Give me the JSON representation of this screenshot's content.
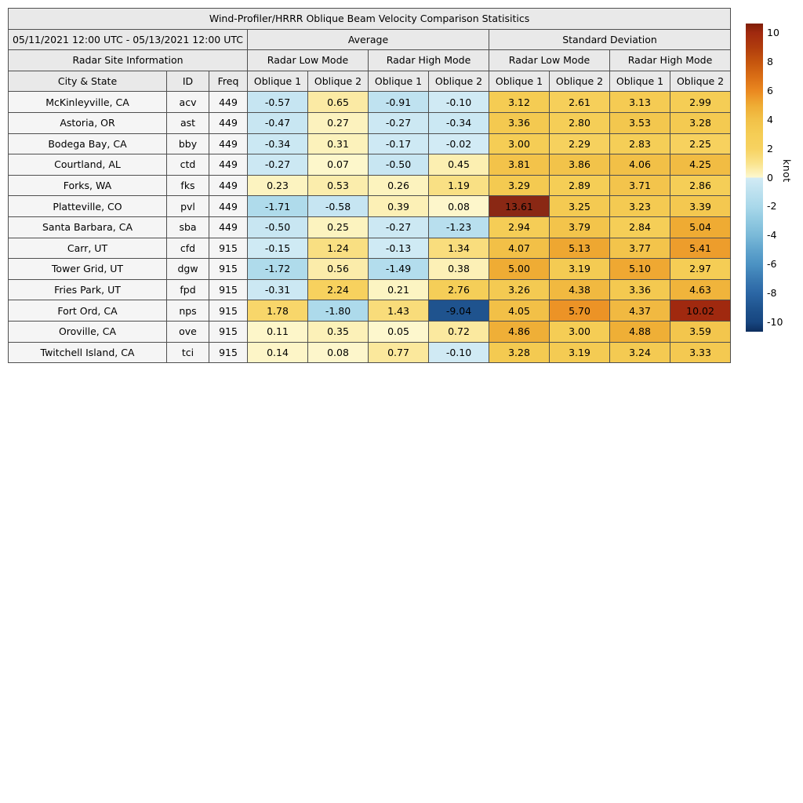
{
  "chart_data": {
    "type": "table",
    "title": "Wind-Profiler/HRRR Oblique Beam Velocity Comparison Statisitics",
    "header": {
      "date_range": "05/11/2021 12:00 UTC - 05/13/2021 12:00 UTC",
      "average": "Average",
      "standard_deviation": "Standard Deviation",
      "site_info": "Radar Site Information",
      "low_mode": "Radar Low Mode",
      "high_mode": "Radar High Mode",
      "col_city": "City & State",
      "col_id": "ID",
      "col_freq": "Freq",
      "oblique1": "Oblique 1",
      "oblique2": "Oblique 2"
    },
    "value_columns": [
      "Average / Radar Low Mode / Oblique 1",
      "Average / Radar Low Mode / Oblique 2",
      "Average / Radar High Mode / Oblique 1",
      "Average / Radar High Mode / Oblique 2",
      "Standard Deviation / Radar Low Mode / Oblique 1",
      "Standard Deviation / Radar Low Mode / Oblique 2",
      "Standard Deviation / Radar High Mode / Oblique 1",
      "Standard Deviation / Radar High Mode / Oblique 2"
    ],
    "rows": [
      {
        "city": "McKinleyville, CA",
        "id": "acv",
        "freq": "449",
        "values": [
          "-0.57",
          "0.65",
          "-0.91",
          "-0.10",
          "3.12",
          "2.61",
          "3.13",
          "2.99"
        ]
      },
      {
        "city": "Astoria, OR",
        "id": "ast",
        "freq": "449",
        "values": [
          "-0.47",
          "0.27",
          "-0.27",
          "-0.34",
          "3.36",
          "2.80",
          "3.53",
          "3.28"
        ]
      },
      {
        "city": "Bodega Bay, CA",
        "id": "bby",
        "freq": "449",
        "values": [
          "-0.34",
          "0.31",
          "-0.17",
          "-0.02",
          "3.00",
          "2.29",
          "2.83",
          "2.25"
        ]
      },
      {
        "city": "Courtland, AL",
        "id": "ctd",
        "freq": "449",
        "values": [
          "-0.27",
          "0.07",
          "-0.50",
          "0.45",
          "3.81",
          "3.86",
          "4.06",
          "4.25"
        ]
      },
      {
        "city": "Forks, WA",
        "id": "fks",
        "freq": "449",
        "values": [
          "0.23",
          "0.53",
          "0.26",
          "1.19",
          "3.29",
          "2.89",
          "3.71",
          "2.86"
        ]
      },
      {
        "city": "Platteville, CO",
        "id": "pvl",
        "freq": "449",
        "values": [
          "-1.71",
          "-0.58",
          "0.39",
          "0.08",
          "13.61",
          "3.25",
          "3.23",
          "3.39"
        ]
      },
      {
        "city": "Santa Barbara, CA",
        "id": "sba",
        "freq": "449",
        "values": [
          "-0.50",
          "0.25",
          "-0.27",
          "-1.23",
          "2.94",
          "3.79",
          "2.84",
          "5.04"
        ]
      },
      {
        "city": "Carr, UT",
        "id": "cfd",
        "freq": "915",
        "values": [
          "-0.15",
          "1.24",
          "-0.13",
          "1.34",
          "4.07",
          "5.13",
          "3.77",
          "5.41"
        ]
      },
      {
        "city": "Tower Grid, UT",
        "id": "dgw",
        "freq": "915",
        "values": [
          "-1.72",
          "0.56",
          "-1.49",
          "0.38",
          "5.00",
          "3.19",
          "5.10",
          "2.97"
        ]
      },
      {
        "city": "Fries Park, UT",
        "id": "fpd",
        "freq": "915",
        "values": [
          "-0.31",
          "2.24",
          "0.21",
          "2.76",
          "3.26",
          "4.38",
          "3.36",
          "4.63"
        ]
      },
      {
        "city": "Fort Ord, CA",
        "id": "nps",
        "freq": "915",
        "values": [
          "1.78",
          "-1.80",
          "1.43",
          "-9.04",
          "4.05",
          "5.70",
          "4.37",
          "10.02"
        ]
      },
      {
        "city": "Oroville, CA",
        "id": "ove",
        "freq": "915",
        "values": [
          "0.11",
          "0.35",
          "0.05",
          "0.72",
          "4.86",
          "3.00",
          "4.88",
          "3.59"
        ]
      },
      {
        "city": "Twitchell Island, CA",
        "id": "tci",
        "freq": "915",
        "values": [
          "0.14",
          "0.08",
          "0.77",
          "-0.10",
          "3.28",
          "3.19",
          "3.24",
          "3.33"
        ]
      }
    ],
    "colorbar": {
      "label": "knot",
      "ticks": [
        10,
        8,
        6,
        4,
        2,
        0,
        -2,
        -4,
        -6,
        -8,
        -10
      ],
      "vmin": -10.65,
      "vmax": 10.65,
      "colormap_stops": [
        [
          -10.65,
          "#0d2e5e"
        ],
        [
          -10.0,
          "#174680"
        ],
        [
          -9.0,
          "#1f548f"
        ],
        [
          -8.0,
          "#2b66a5"
        ],
        [
          -7.0,
          "#3a7ab2"
        ],
        [
          -6.0,
          "#4b92c3"
        ],
        [
          -5.0,
          "#60a4cd"
        ],
        [
          -4.0,
          "#7ab9d8"
        ],
        [
          -3.0,
          "#90c9e1"
        ],
        [
          -2.0,
          "#a9d8ea"
        ],
        [
          -1.0,
          "#bde1ef"
        ],
        [
          -0.001,
          "#d2ebf5"
        ],
        [
          0.001,
          "#fdf8d0"
        ],
        [
          1.0,
          "#fae38c"
        ],
        [
          2.0,
          "#f7d261"
        ],
        [
          3.0,
          "#f5cd55"
        ],
        [
          4.0,
          "#f2c148"
        ],
        [
          5.0,
          "#efac34"
        ],
        [
          6.0,
          "#ea8820"
        ],
        [
          7.0,
          "#d96d15"
        ],
        [
          8.0,
          "#c5550e"
        ],
        [
          9.0,
          "#b03c0d"
        ],
        [
          10.0,
          "#a1290f"
        ],
        [
          10.65,
          "#7f1d06"
        ],
        [
          14.0,
          "#8b2a16"
        ]
      ]
    },
    "layout": {
      "grid": "table",
      "legend_position": "right-colorbar",
      "colors": {
        "header_bg": "#e9e9e9",
        "label_bg": "#f5f5f5",
        "border": "#4f4f4f",
        "text": "#000000",
        "background": "#ffffff"
      }
    }
  }
}
